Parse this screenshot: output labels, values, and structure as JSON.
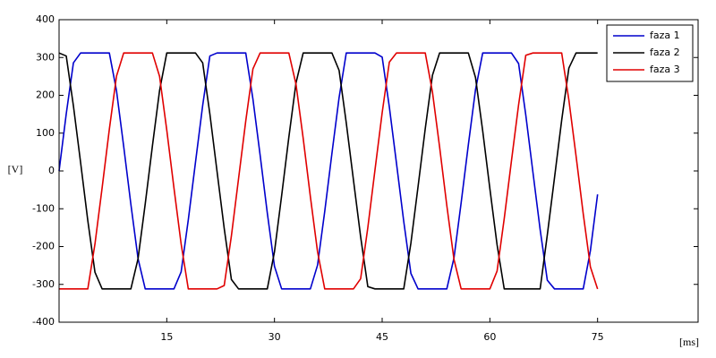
{
  "chart_data": {
    "type": "line",
    "x_label": "[ms]",
    "y_label": "[V]",
    "x": [
      0,
      1,
      2,
      3,
      4,
      5,
      6,
      7,
      8,
      9,
      10,
      11,
      12,
      13,
      14,
      15,
      16,
      17,
      18,
      19,
      20,
      21,
      22,
      23,
      24,
      25,
      26,
      27,
      28,
      29,
      30,
      31,
      32,
      33,
      34,
      35,
      36,
      37,
      38,
      39,
      40,
      41,
      42,
      43,
      44,
      45,
      46,
      47,
      48,
      49,
      50,
      51,
      52,
      53,
      54,
      55,
      56,
      57,
      58,
      59,
      60,
      61,
      62,
      63,
      64,
      65,
      66,
      67,
      68,
      69,
      70,
      71,
      72,
      73,
      74,
      75
    ],
    "series": [
      {
        "name": "faza 1",
        "color": "#0000cc",
        "values": [
          0,
          151,
          286,
          312,
          312,
          312,
          312,
          312,
          212,
          65,
          -88,
          -232,
          -312,
          -312,
          -312,
          -312,
          -312,
          -267,
          -129,
          23,
          173,
          304,
          312,
          312,
          312,
          312,
          312,
          190,
          42,
          -111,
          -252,
          -312,
          -312,
          -312,
          -312,
          -312,
          -249,
          -107,
          46,
          194,
          312,
          312,
          312,
          312,
          312,
          301,
          169,
          19,
          -133,
          -271,
          -312,
          -312,
          -312,
          -312,
          -312,
          -230,
          -84,
          69,
          215,
          312,
          312,
          312,
          312,
          312,
          284,
          148,
          -4,
          -155,
          -289,
          -312,
          -312,
          -312,
          -312,
          -312,
          -211,
          -62
        ]
      },
      {
        "name": "faza 2",
        "color": "#000000",
        "values": [
          312,
          304,
          172,
          22,
          -131,
          -268,
          -312,
          -312,
          -312,
          -312,
          -312,
          -232,
          -87,
          66,
          213,
          312,
          312,
          312,
          312,
          312,
          286,
          151,
          -1,
          -152,
          -287,
          -312,
          -312,
          -312,
          -312,
          -312,
          -214,
          -65,
          89,
          233,
          312,
          312,
          312,
          312,
          312,
          266,
          127,
          -24,
          -174,
          -306,
          -312,
          -312,
          -312,
          -312,
          -312,
          -191,
          -41,
          112,
          253,
          312,
          312,
          312,
          312,
          312,
          247,
          106,
          -47,
          -195,
          -312,
          -312,
          -312,
          -312,
          -312,
          -312,
          -169,
          -18,
          134,
          272,
          312,
          312,
          312,
          312
        ]
      },
      {
        "name": "faza 3",
        "color": "#e00000",
        "values": [
          -312,
          -312,
          -312,
          -312,
          -312,
          -193,
          -44,
          110,
          251,
          312,
          312,
          312,
          312,
          312,
          250,
          108,
          -45,
          -193,
          -312,
          -312,
          -312,
          -312,
          -312,
          -303,
          -172,
          -20,
          132,
          270,
          312,
          312,
          312,
          312,
          312,
          229,
          86,
          -68,
          -214,
          -312,
          -312,
          -312,
          -312,
          -312,
          -285,
          -150,
          3,
          154,
          288,
          312,
          312,
          312,
          312,
          312,
          209,
          63,
          -91,
          -234,
          -312,
          -312,
          -312,
          -312,
          -312,
          -265,
          -126,
          26,
          175,
          306,
          312,
          312,
          312,
          312,
          312,
          188,
          40,
          -113,
          -254,
          -312
        ]
      }
    ],
    "xlim": [
      0,
      89
    ],
    "xticks": [
      15,
      30,
      45,
      60,
      75
    ],
    "ylim": [
      -400,
      400
    ],
    "yticks": [
      -400,
      -300,
      -200,
      -100,
      0,
      100,
      200,
      300,
      400
    ],
    "grid": false,
    "legend": "top-right"
  }
}
